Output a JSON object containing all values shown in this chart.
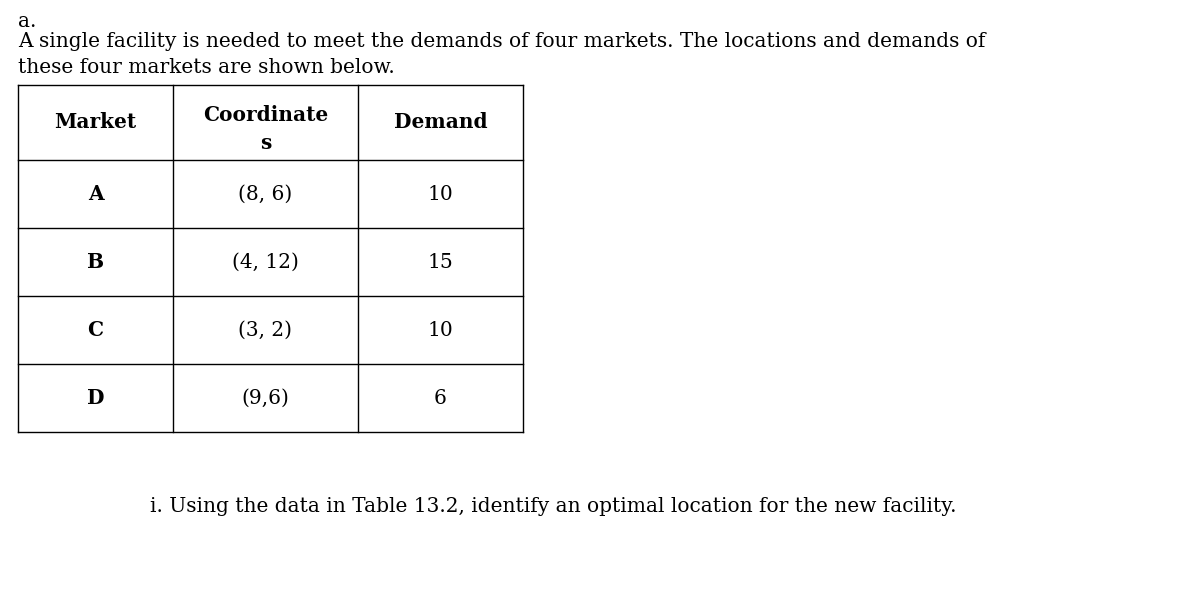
{
  "title_letter": "a.",
  "intro_text_line1": "A single facility is needed to meet the demands of four markets. The locations and demands of",
  "intro_text_line2": "these four markets are shown below.",
  "col_headers_line1": [
    "Market",
    "Coordinate",
    "Demand"
  ],
  "col_header_line2": "s",
  "rows": [
    [
      "A",
      "(8, 6)",
      "10"
    ],
    [
      "B",
      "(4, 12)",
      "15"
    ],
    [
      "C",
      "(3, 2)",
      "10"
    ],
    [
      "D",
      "(9,6)",
      "6"
    ]
  ],
  "footer_text": "i. Using the data in Table 13.2, identify an optimal location for the new facility.",
  "background_color": "#ffffff",
  "font_size": 14.5
}
